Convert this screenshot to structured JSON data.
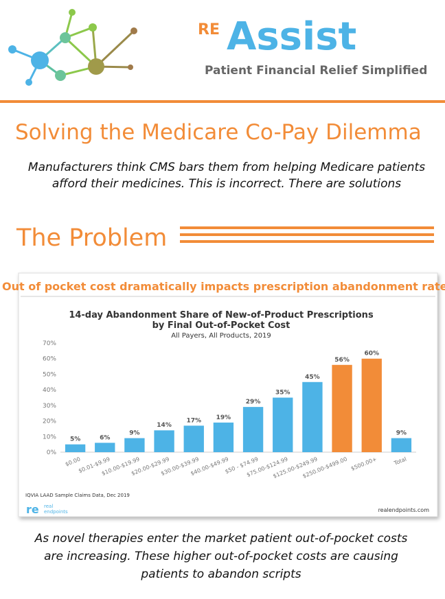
{
  "header": {
    "brand_prefix": "RE",
    "brand": "Assist",
    "tagline": "Patient Financial Relief Simplified"
  },
  "title": "Solving the Medicare Co-Pay Dilemma",
  "intro": [
    "Manufacturers think CMS bars them from helping Medicare patients",
    "afford their medicines. This is incorrect. There are solutions"
  ],
  "section_heading": "The Problem",
  "chart_data": {
    "type": "bar",
    "banner": "Out of pocket cost dramatically impacts prescription abandonment rates",
    "title": [
      "14-day Abandonment Share of New-of-Product Prescriptions",
      "by Final Out-of-Pocket Cost"
    ],
    "subtitle": "All Payers, All Products, 2019",
    "categories": [
      "$0.00",
      "$0.01-$9.99",
      "$10.00-$19.99",
      "$20.00-$29.99",
      "$30.00-$39.99",
      "$40.00-$49.99",
      "$50 - $74.99",
      "$75.00-$124.99",
      "$125.00-$249.99",
      "$250.00-$499.00",
      "$500.00+",
      "Total"
    ],
    "values": [
      5,
      6,
      9,
      14,
      17,
      19,
      29,
      35,
      45,
      56,
      60,
      9
    ],
    "value_labels": [
      "5%",
      "6%",
      "9%",
      "14%",
      "17%",
      "19%",
      "29%",
      "35%",
      "45%",
      "56%",
      "60%",
      "9%"
    ],
    "colors": [
      "#4db3e6",
      "#4db3e6",
      "#4db3e6",
      "#4db3e6",
      "#4db3e6",
      "#4db3e6",
      "#4db3e6",
      "#4db3e6",
      "#4db3e6",
      "#f28c38",
      "#f28c38",
      "#4db3e6"
    ],
    "ylim": [
      0,
      70
    ],
    "yticks": [
      {
        "value": 0,
        "label": "0%"
      },
      {
        "value": 10,
        "label": "10%"
      },
      {
        "value": 20,
        "label": "20%"
      },
      {
        "value": 30,
        "label": "30%"
      },
      {
        "value": 40,
        "label": "40%"
      },
      {
        "value": 50,
        "label": "50%"
      },
      {
        "value": 60,
        "label": "60%"
      },
      {
        "value": 70,
        "label": "70%"
      }
    ],
    "source": "IQVIA LAAD Sample Claims Data, Dec 2019",
    "logo": [
      "re",
      "real",
      "endpoints"
    ],
    "site": "realendpoints.com"
  },
  "footer": [
    "As novel therapies enter the market patient out-of-pocket costs",
    "are increasing. These higher out-of-pocket costs are causing",
    "patients to abandon scripts"
  ]
}
